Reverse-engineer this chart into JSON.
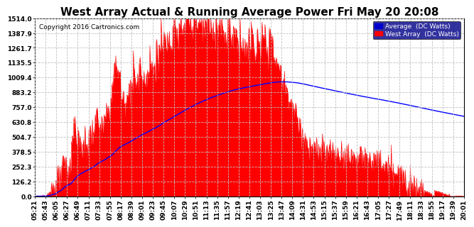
{
  "title": "West Array Actual & Running Average Power Fri May 20 20:08",
  "copyright": "Copyright 2016 Cartronics.com",
  "legend_avg": "Average  (DC Watts)",
  "legend_west": "West Array  (DC Watts)",
  "y_ticks": [
    0.0,
    126.2,
    252.3,
    378.5,
    504.7,
    630.8,
    757.0,
    883.2,
    1009.4,
    1135.5,
    1261.7,
    1387.9,
    1514.0
  ],
  "y_max": 1514.0,
  "bg_color": "#ffffff",
  "plot_bg_color": "#ffffff",
  "grid_color": "#c0c0c0",
  "fill_color": "#ff0000",
  "avg_line_color": "#0000ff",
  "title_fontsize": 11,
  "tick_fontsize": 6.5,
  "x_ticks": [
    "05:21",
    "05:43",
    "06:05",
    "06:27",
    "06:49",
    "07:11",
    "07:33",
    "07:55",
    "08:17",
    "08:39",
    "09:01",
    "09:23",
    "09:45",
    "10:07",
    "10:29",
    "10:51",
    "11:13",
    "11:35",
    "11:57",
    "12:19",
    "12:41",
    "13:03",
    "13:25",
    "13:47",
    "14:09",
    "14:31",
    "14:53",
    "15:15",
    "15:37",
    "15:59",
    "16:21",
    "16:43",
    "17:05",
    "17:27",
    "17:49",
    "18:11",
    "18:33",
    "18:55",
    "19:17",
    "19:39",
    "20:01"
  ]
}
